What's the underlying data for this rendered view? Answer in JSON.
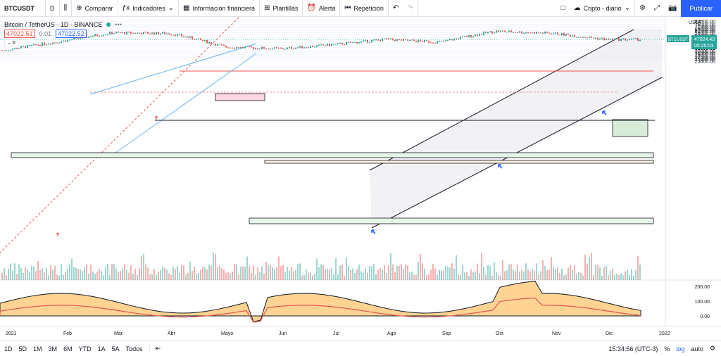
{
  "toolbar": {
    "symbol": "BTCUSDT",
    "interval": "D",
    "compare": "Comparar",
    "indicators": "Indicadores",
    "financial": "Información financiera",
    "templates": "Plantillas",
    "alert": "Alerta",
    "replay": "Repetición",
    "layout_name": "Cripto - diario",
    "publish": "Publicar"
  },
  "legend": {
    "title": "Bitcoin / TetherUS · 1D · BINANCE",
    "bid": "47022.51",
    "spread": "0.01",
    "ask": "47022.52",
    "collapsed_count": "6"
  },
  "price_axis": {
    "currency": "USDT",
    "labels": [
      "84000.00",
      "76000.00",
      "71000.00",
      "66000.00",
      "62000.00",
      "58000.00",
      "54000.00",
      "50000.00",
      "42000.00",
      "39000.00",
      "36000.00",
      "33000.00",
      "31000.00",
      "29000.00",
      "27000.00",
      "25400.00",
      "23800.00"
    ],
    "last_symbol": "BTCUSDT",
    "last_price": "47024.43",
    "countdown": "05:25:03"
  },
  "osc_axis": {
    "labels": [
      "200.00",
      "100.00",
      "0.00"
    ]
  },
  "time_axis": {
    "labels": [
      "2021",
      "Feb",
      "Mar",
      "Abr",
      "Mayo",
      "Jun",
      "Jul",
      "Ago",
      "Sep",
      "Oct",
      "Nov",
      "Dic",
      "2022"
    ]
  },
  "bottom": {
    "ranges": [
      "1D",
      "5D",
      "1M",
      "3M",
      "6M",
      "YTD",
      "1A",
      "5A",
      "Todos"
    ],
    "clock": "15:34:56 (UTC-3)",
    "percent": "%",
    "log": "log",
    "auto": "auto"
  },
  "colors": {
    "up": "#26a69a",
    "down": "#ef5350",
    "accent": "#2962ff"
  },
  "chart_data": {
    "type": "line",
    "x": [
      "2021-01",
      "2021-02",
      "2021-03",
      "2021-04",
      "2021-05",
      "2021-06",
      "2021-07",
      "2021-08",
      "2021-09",
      "2021-10",
      "2021-11",
      "2021-12"
    ],
    "series": [
      {
        "name": "BTCUSDT",
        "values": [
          33000,
          45000,
          58000,
          57000,
          37000,
          35000,
          40000,
          47000,
          43000,
          61000,
          57000,
          47024
        ]
      }
    ],
    "ylim": [
      22500,
      86000
    ],
    "log_scale": true
  }
}
